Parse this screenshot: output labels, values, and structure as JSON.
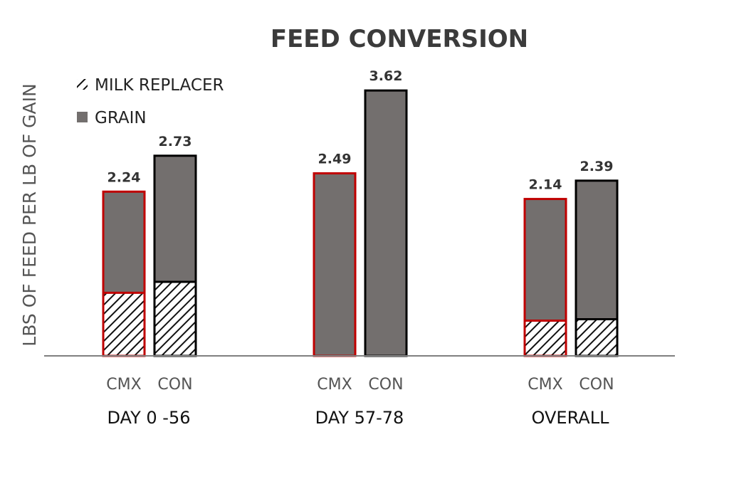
{
  "chart_data": {
    "type": "bar",
    "stacked": true,
    "title": "FEED CONVERSION",
    "ylabel": "LBS OF FEED PER LB OF GAIN",
    "ylim": [
      0,
      4.0
    ],
    "legend": {
      "placement": "top-left",
      "entries": [
        {
          "name": "MILK REPLACER",
          "pattern": "diagonal-hatch"
        },
        {
          "name": "GRAIN",
          "color": "#736f6e"
        }
      ]
    },
    "groups": [
      {
        "label": "DAY 0 -56",
        "bars": [
          {
            "category": "CMX",
            "milk_replacer": 0.86,
            "grain": 1.38,
            "total": 2.24,
            "total_label": "2.24",
            "outline": "#c00000"
          },
          {
            "category": "CON",
            "milk_replacer": 1.01,
            "grain": 1.72,
            "total": 2.73,
            "total_label": "2.73",
            "outline": "#000000"
          }
        ]
      },
      {
        "label": "DAY 57-78",
        "bars": [
          {
            "category": "CMX",
            "milk_replacer": 0,
            "grain": 2.49,
            "total": 2.49,
            "total_label": "2.49",
            "outline": "#c00000"
          },
          {
            "category": "CON",
            "milk_replacer": 0,
            "grain": 3.62,
            "total": 3.62,
            "total_label": "3.62",
            "outline": "#000000"
          }
        ]
      },
      {
        "label": "OVERALL",
        "bars": [
          {
            "category": "CMX",
            "milk_replacer": 0.48,
            "grain": 1.66,
            "total": 2.14,
            "total_label": "2.14",
            "outline": "#c00000"
          },
          {
            "category": "CON",
            "milk_replacer": 0.5,
            "grain": 1.89,
            "total": 2.39,
            "total_label": "2.39",
            "outline": "#000000"
          }
        ]
      }
    ]
  }
}
